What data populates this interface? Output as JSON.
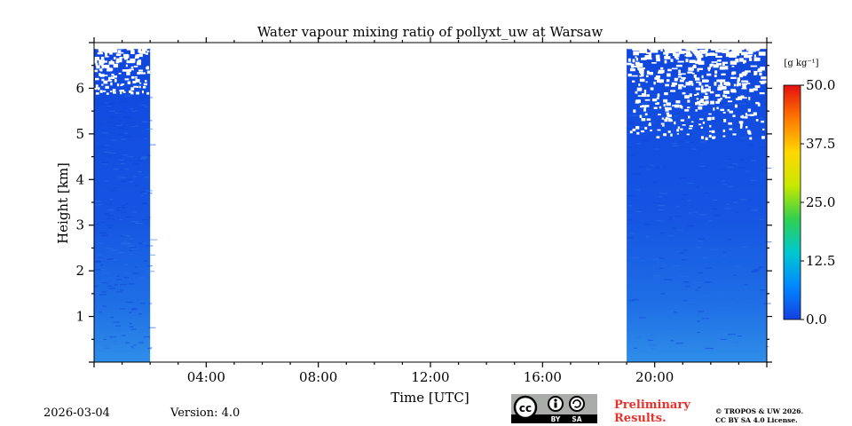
{
  "chart_data": {
    "type": "heatmap",
    "title": "Water vapour mixing ratio of pollyxt_uw at Warsaw",
    "xlabel": "Time [UTC]",
    "ylabel": "Height [km]",
    "xlim_hours": [
      0,
      24
    ],
    "ylim_km": [
      0,
      7
    ],
    "x_ticks": [
      {
        "hour": 4,
        "label": "04:00"
      },
      {
        "hour": 8,
        "label": "08:00"
      },
      {
        "hour": 12,
        "label": "12:00"
      },
      {
        "hour": 16,
        "label": "16:00"
      },
      {
        "hour": 20,
        "label": "20:00"
      }
    ],
    "y_ticks": [
      {
        "km": 1,
        "label": "1"
      },
      {
        "km": 2,
        "label": "2"
      },
      {
        "km": 3,
        "label": "3"
      },
      {
        "km": 4,
        "label": "4"
      },
      {
        "km": 5,
        "label": "5"
      },
      {
        "km": 6,
        "label": "6"
      }
    ],
    "colorbar": {
      "unit_label": "[g kg⁻¹]",
      "range": [
        0,
        50
      ],
      "ticks": [
        {
          "value": 0,
          "label": "0.0"
        },
        {
          "value": 12.5,
          "label": "12.5"
        },
        {
          "value": 25,
          "label": "25.0"
        },
        {
          "value": 37.5,
          "label": "37.5"
        },
        {
          "value": 50,
          "label": "50.0"
        }
      ],
      "colors": [
        "#1440e0",
        "#0088ff",
        "#00c8d0",
        "#30d050",
        "#c8e800",
        "#ffd800",
        "#ff7800",
        "#e41010"
      ]
    },
    "data_segments": [
      {
        "start_hour": 0.0,
        "end_hour": 2.0,
        "value_min": 0.0,
        "value_max": 4.0,
        "top_km": 6.9
      },
      {
        "start_hour": 19.0,
        "end_hour": 24.0,
        "value_min": 0.0,
        "value_max": 4.0,
        "top_km": 6.9
      }
    ],
    "no_data_gap": {
      "start_hour": 2.0,
      "end_hour": 19.0
    }
  },
  "footer": {
    "date": "2026-03-04",
    "version": "Version: 4.0",
    "license_badge": {
      "icon": "cc-by-sa-icon",
      "parts": [
        "BY",
        "SA"
      ]
    },
    "preliminary_line1": "Preliminary",
    "preliminary_line2": "Results.",
    "copyright_line1": "© TROPOS & UW 2026.",
    "copyright_line2": "CC BY SA 4.0 License."
  }
}
